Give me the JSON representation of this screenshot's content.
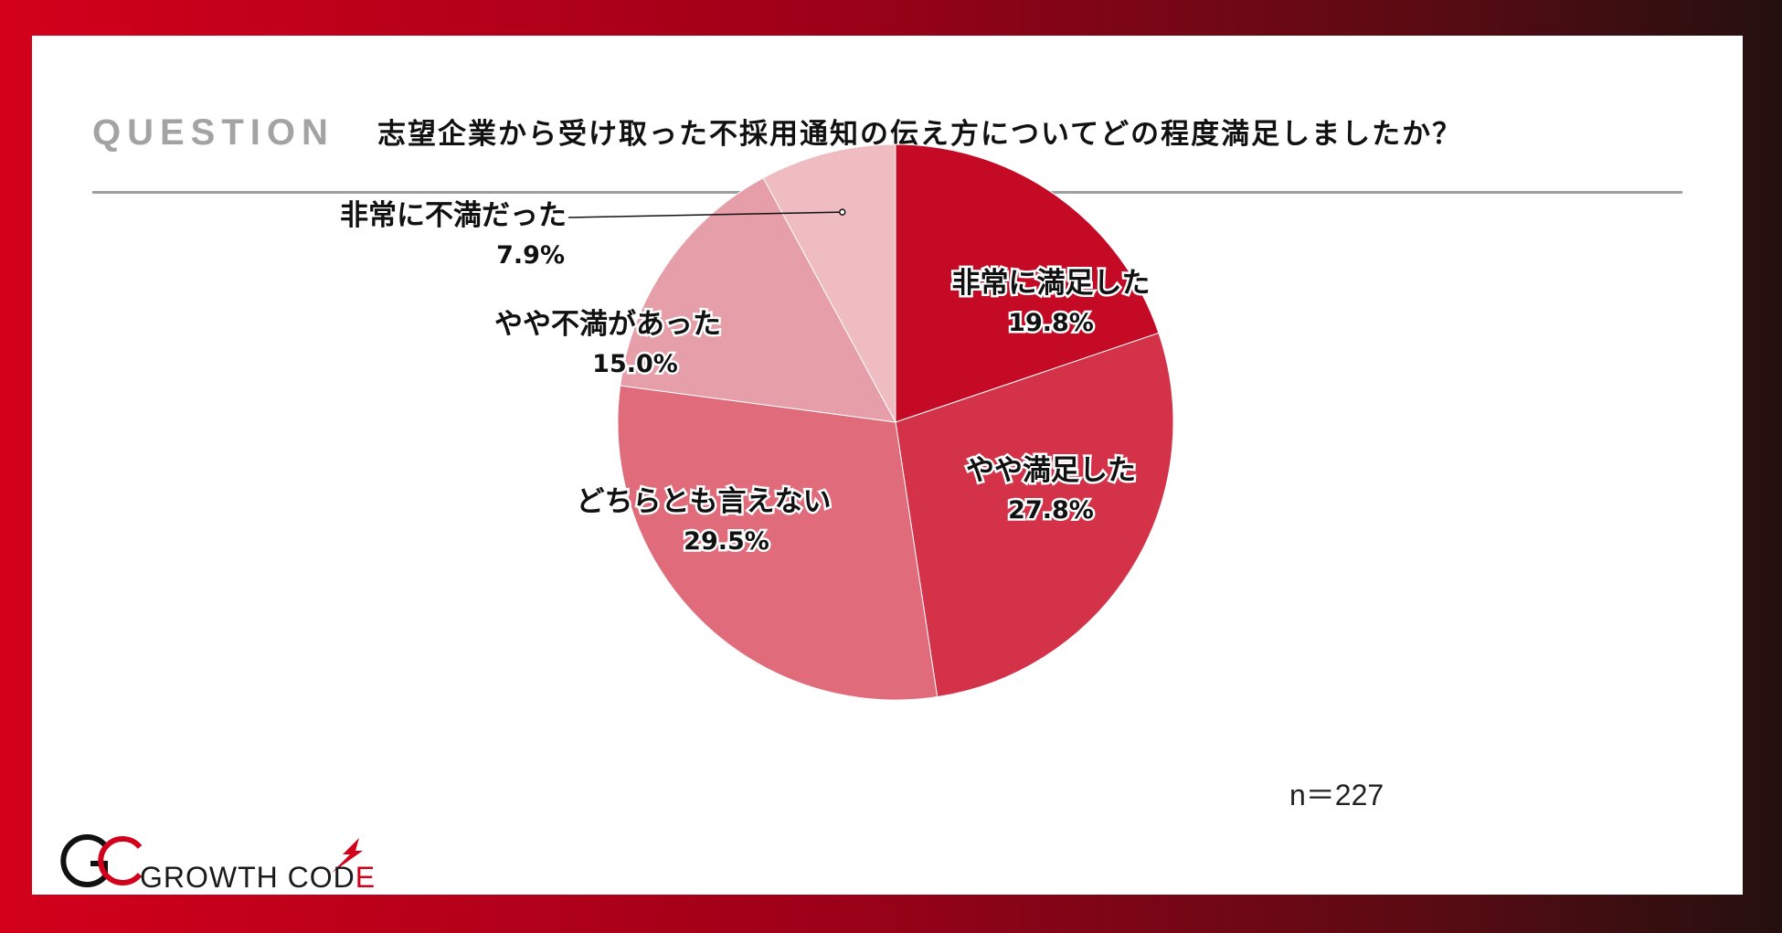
{
  "header": {
    "label": "QUESTION",
    "question": "志望企業から受け取った不採用通知の伝え方についてどの程度満足しましたか？"
  },
  "sample_size": "n＝227",
  "brand": {
    "name_main": "GROWTH COD",
    "name_accent": "E"
  },
  "colors": {
    "frame_left": "#d3001b",
    "frame_right": "#24100f",
    "slices": [
      "#c40a24",
      "#d33248",
      "#e06c7b",
      "#e69fa8",
      "#efbcc2"
    ]
  },
  "chart_data": {
    "type": "pie",
    "start_angle": "12 o'clock",
    "direction": "clockwise",
    "slices": [
      {
        "label": "非常に満足した",
        "value": 19.8,
        "display": "19.8%"
      },
      {
        "label": "やや満足した",
        "value": 27.8,
        "display": "27.8%"
      },
      {
        "label": "どちらとも言えない",
        "value": 29.5,
        "display": "29.5%"
      },
      {
        "label": "やや不満があった",
        "value": 15.0,
        "display": "15.0%"
      },
      {
        "label": "非常に不満だった",
        "value": 7.9,
        "display": "7.9%"
      }
    ]
  }
}
